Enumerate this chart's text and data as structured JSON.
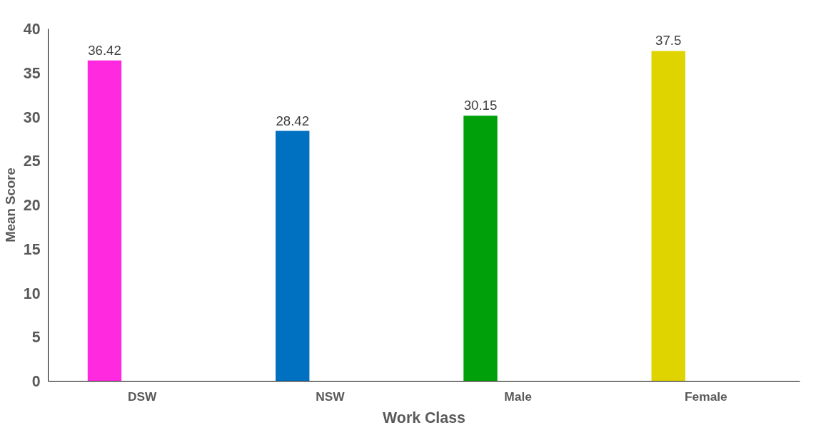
{
  "chart_data": {
    "type": "bar",
    "xlabel": "Work Class",
    "ylabel": "Mean Score",
    "categories": [
      "DSW",
      "NSW",
      "Male",
      "Female"
    ],
    "values": [
      36.42,
      28.42,
      30.15,
      37.5
    ],
    "colors": [
      "#ff2ae0",
      "#0070c0",
      "#00a00a",
      "#dfd400"
    ],
    "ylim": [
      0,
      40
    ],
    "yticks": [
      0,
      5,
      10,
      15,
      20,
      25,
      30,
      35,
      40
    ],
    "data_labels": true,
    "grid": false
  }
}
